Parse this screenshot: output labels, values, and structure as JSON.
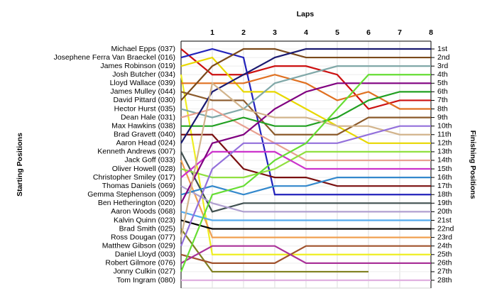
{
  "chart_data": {
    "type": "line",
    "title": "Laps",
    "y_label": "Starting Positions",
    "y2_label": "Finishing Positions",
    "x": [
      0,
      1,
      2,
      3,
      4,
      5,
      6,
      7,
      8
    ],
    "xlim": [
      0,
      8
    ],
    "xticks": [
      1,
      2,
      3,
      4,
      5,
      6,
      7,
      8
    ],
    "ylim": [
      1,
      28
    ],
    "y_inverted": true,
    "grid": true,
    "yticks": [
      {
        "value": 1,
        "label": "1st"
      },
      {
        "value": 2,
        "label": "2nd"
      },
      {
        "value": 3,
        "label": "3rd"
      },
      {
        "value": 4,
        "label": "4th"
      },
      {
        "value": 5,
        "label": "5th"
      },
      {
        "value": 6,
        "label": "6th"
      },
      {
        "value": 7,
        "label": "7th"
      },
      {
        "value": 8,
        "label": "8th"
      },
      {
        "value": 9,
        "label": "9th"
      },
      {
        "value": 10,
        "label": "10th"
      },
      {
        "value": 11,
        "label": "11th"
      },
      {
        "value": 12,
        "label": "12th"
      },
      {
        "value": 13,
        "label": "13th"
      },
      {
        "value": 14,
        "label": "14th"
      },
      {
        "value": 15,
        "label": "15th"
      },
      {
        "value": 16,
        "label": "16th"
      },
      {
        "value": 17,
        "label": "17th"
      },
      {
        "value": 18,
        "label": "18th"
      },
      {
        "value": 19,
        "label": "19th"
      },
      {
        "value": 20,
        "label": "20th"
      },
      {
        "value": 21,
        "label": "21st"
      },
      {
        "value": 22,
        "label": "22nd"
      },
      {
        "value": 23,
        "label": "23rd"
      },
      {
        "value": 24,
        "label": "24th"
      },
      {
        "value": 25,
        "label": "25th"
      },
      {
        "value": 26,
        "label": "26th"
      },
      {
        "value": 27,
        "label": "27th"
      },
      {
        "value": 28,
        "label": "28th"
      }
    ],
    "series": [
      {
        "name": "Michael Epps (037)",
        "color": "#cc1111",
        "values": [
          1,
          4,
          4,
          3,
          3,
          4,
          8,
          7,
          7
        ]
      },
      {
        "name": "Josephene Ferra Van Braeckel (016)",
        "color": "#2222bb",
        "values": [
          2,
          1,
          2,
          18,
          18,
          18,
          18,
          18,
          18
        ]
      },
      {
        "name": "James Robinson (019)",
        "color": "#e8d800",
        "values": [
          3,
          2,
          6,
          6,
          8,
          10,
          12,
          12,
          12
        ]
      },
      {
        "name": "Josh Butcher (034)",
        "color": "#eeee22",
        "values": [
          4,
          25,
          25,
          25,
          25,
          25,
          25,
          25,
          25
        ]
      },
      {
        "name": "Lloyd Wallace (039)",
        "color": "#e07020",
        "values": [
          5,
          5,
          5,
          4,
          5,
          7,
          6,
          8,
          8
        ]
      },
      {
        "name": "James Mulley (044)",
        "color": "#8b5a2b",
        "values": [
          6,
          7,
          7,
          11,
          11,
          11,
          9,
          9,
          9
        ]
      },
      {
        "name": "David Pittard (030)",
        "color": "#7b4a1b",
        "values": [
          7,
          3,
          1,
          1,
          2,
          2,
          2,
          2,
          2
        ]
      },
      {
        "name": "Hector Hurst (035)",
        "color": "#80a8a8",
        "values": [
          8,
          9,
          8,
          5,
          4,
          3,
          3,
          3,
          3
        ]
      },
      {
        "name": "Dean Hale (031)",
        "color": "#e8a090",
        "values": [
          9,
          8,
          10,
          12,
          14,
          14,
          14,
          14,
          14
        ]
      },
      {
        "name": "Max Hawkins (038)",
        "color": "#22a022",
        "values": [
          10,
          10,
          9,
          10,
          10,
          9,
          7,
          6,
          6
        ]
      },
      {
        "name": "Brad Gravett (040)",
        "color": "#7a1010",
        "values": [
          11,
          11,
          15,
          16,
          16,
          17,
          17,
          17,
          17
        ]
      },
      {
        "name": "Aaron Head (024)",
        "color": "#1a1a70",
        "values": [
          12,
          6,
          4,
          2,
          1,
          1,
          1,
          1,
          1
        ]
      },
      {
        "name": "Kenneth Andrews (007)",
        "color": "#405050",
        "values": [
          13,
          20,
          19,
          19,
          19,
          19,
          19,
          19,
          19
        ]
      },
      {
        "name": "Jack Goff (033)",
        "color": "#f0a050",
        "values": [
          14,
          23,
          23,
          23,
          23,
          23,
          23,
          23,
          23
        ]
      },
      {
        "name": "Oliver Howell (028)",
        "color": "#90e040",
        "values": [
          15,
          16,
          16,
          15,
          13,
          13,
          13,
          13,
          13
        ]
      },
      {
        "name": "Christopher Smiley (017)",
        "color": "#cc33cc",
        "values": [
          16,
          13,
          13,
          13,
          15,
          15,
          15,
          15,
          15
        ]
      },
      {
        "name": "Thomas Daniels (069)",
        "color": "#b0a0d0",
        "values": [
          17,
          19,
          20,
          20,
          20,
          20,
          20,
          20,
          20
        ]
      },
      {
        "name": "Gemma Stephenson (009)",
        "color": "#3388cc",
        "values": [
          18,
          17,
          18,
          17,
          17,
          16,
          16,
          16,
          16
        ]
      },
      {
        "name": "Ben Hetherington (020)",
        "color": "#800080",
        "values": [
          19,
          12,
          11,
          8,
          6,
          5,
          5,
          5,
          5
        ]
      },
      {
        "name": "Aaron Woods (068)",
        "color": "#55aaee",
        "values": [
          20,
          21,
          21,
          21,
          21,
          21,
          21,
          21,
          21
        ]
      },
      {
        "name": "Kalvin Quinn (023)",
        "color": "#000000",
        "values": [
          21,
          22,
          22,
          22,
          22,
          22,
          22,
          22,
          22
        ]
      },
      {
        "name": "Brad Smith (025)",
        "color": "#808020",
        "values": [
          22,
          27,
          27,
          27,
          27,
          27,
          27,
          null,
          null
        ]
      },
      {
        "name": "Ross Dougan (077)",
        "color": "#d2b48c",
        "values": [
          23,
          5,
          8,
          9,
          9,
          10,
          10,
          11,
          11
        ]
      },
      {
        "name": "Matthew Gibson (029)",
        "color": "#9370db",
        "values": [
          24,
          15,
          12,
          12,
          12,
          12,
          11,
          10,
          10
        ]
      },
      {
        "name": "Daniel Lloyd (003)",
        "color": "#a0522d",
        "values": [
          25,
          26,
          26,
          26,
          24,
          24,
          24,
          24,
          24
        ]
      },
      {
        "name": "Robert Gilmore (076)",
        "color": "#aa3399",
        "values": [
          26,
          24,
          24,
          24,
          26,
          26,
          26,
          26,
          26
        ]
      },
      {
        "name": "Jonny Culkin (027)",
        "color": "#66dd33",
        "values": [
          27,
          18,
          17,
          14,
          12,
          8,
          4,
          4,
          4
        ]
      },
      {
        "name": "Tom Ingram (080)",
        "color": "#e0b0e0",
        "values": [
          28,
          28,
          28,
          28,
          28,
          28,
          28,
          28,
          28
        ]
      }
    ]
  }
}
